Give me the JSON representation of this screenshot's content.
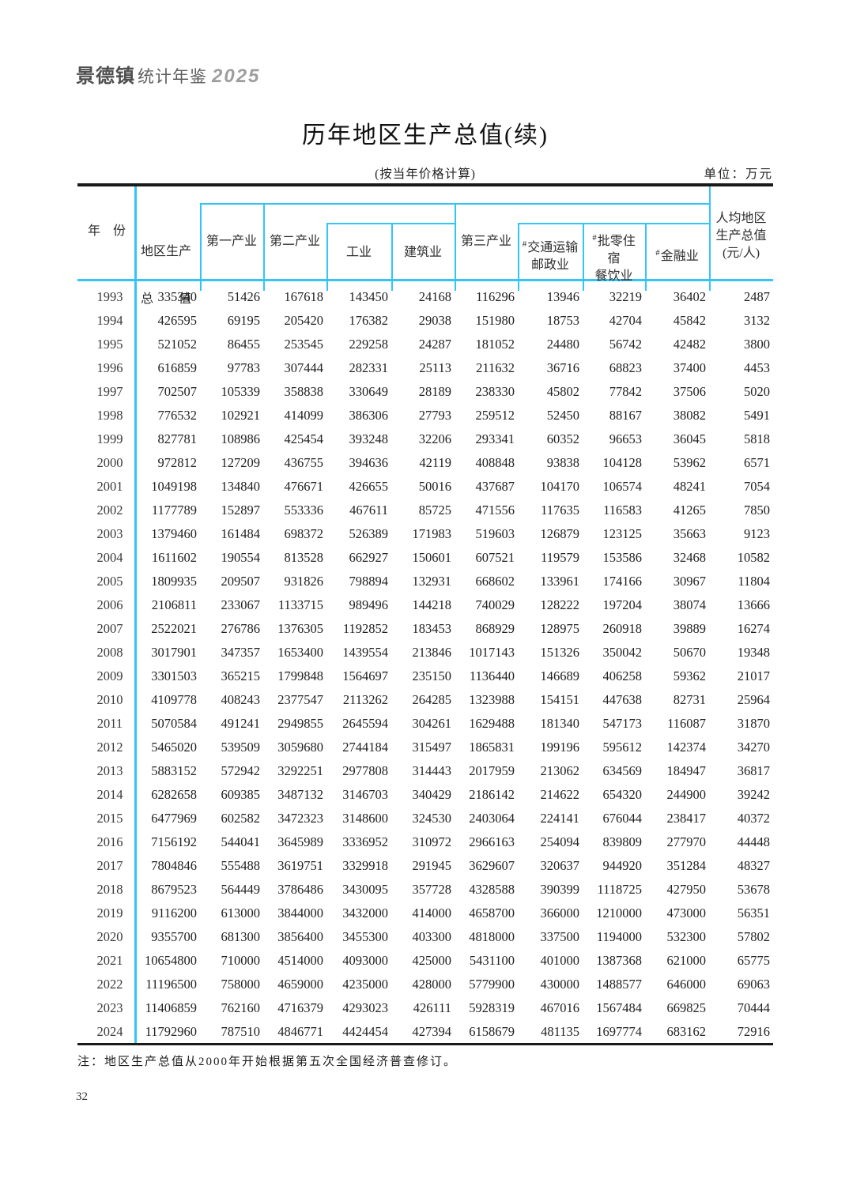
{
  "brand": {
    "city": "景德镇",
    "suffix": "统计年鉴",
    "year": "2025"
  },
  "title": "历年地区生产总值(续)",
  "subtitle": "(按当年价格计算)",
  "unit": "单位：万元",
  "note": "注：地区生产总值从2000年开始根据第五次全国经济普查修订。",
  "page_number": "32",
  "colors": {
    "accent": "#33c5f7",
    "rule": "#1a1a1a"
  },
  "table": {
    "header": {
      "year": "年　份",
      "gdp_line1": "地区生产",
      "gdp_line2": "总　　值",
      "primary": "第一产业",
      "secondary": "第二产业",
      "industry": "工业",
      "construction": "建筑业",
      "tertiary": "第三产业",
      "hash": "#",
      "transport_line1": "交通运输",
      "transport_line2": "邮政业",
      "wholesale_line1": "批零住",
      "wholesale_line2": "宿",
      "wholesale_line3": "餐饮业",
      "finance": "金融业",
      "percapita_line1": "人均地区",
      "percapita_line2": "生产总值",
      "percapita_line3": "(元/人)"
    },
    "columns": [
      "年份",
      "地区生产总值",
      "第一产业",
      "第二产业",
      "工业",
      "建筑业",
      "第三产业",
      "#交通运输邮政业",
      "#批零住宿餐饮业",
      "#金融业",
      "人均地区生产总值(元/人)"
    ],
    "rows": [
      [
        "1993",
        "335340",
        "51426",
        "167618",
        "143450",
        "24168",
        "116296",
        "13946",
        "32219",
        "36402",
        "2487"
      ],
      [
        "1994",
        "426595",
        "69195",
        "205420",
        "176382",
        "29038",
        "151980",
        "18753",
        "42704",
        "45842",
        "3132"
      ],
      [
        "1995",
        "521052",
        "86455",
        "253545",
        "229258",
        "24287",
        "181052",
        "24480",
        "56742",
        "42482",
        "3800"
      ],
      [
        "1996",
        "616859",
        "97783",
        "307444",
        "282331",
        "25113",
        "211632",
        "36716",
        "68823",
        "37400",
        "4453"
      ],
      [
        "1997",
        "702507",
        "105339",
        "358838",
        "330649",
        "28189",
        "238330",
        "45802",
        "77842",
        "37506",
        "5020"
      ],
      [
        "1998",
        "776532",
        "102921",
        "414099",
        "386306",
        "27793",
        "259512",
        "52450",
        "88167",
        "38082",
        "5491"
      ],
      [
        "1999",
        "827781",
        "108986",
        "425454",
        "393248",
        "32206",
        "293341",
        "60352",
        "96653",
        "36045",
        "5818"
      ],
      [
        "2000",
        "972812",
        "127209",
        "436755",
        "394636",
        "42119",
        "408848",
        "93838",
        "104128",
        "53962",
        "6571"
      ],
      [
        "2001",
        "1049198",
        "134840",
        "476671",
        "426655",
        "50016",
        "437687",
        "104170",
        "106574",
        "48241",
        "7054"
      ],
      [
        "2002",
        "1177789",
        "152897",
        "553336",
        "467611",
        "85725",
        "471556",
        "117635",
        "116583",
        "41265",
        "7850"
      ],
      [
        "2003",
        "1379460",
        "161484",
        "698372",
        "526389",
        "171983",
        "519603",
        "126879",
        "123125",
        "35663",
        "9123"
      ],
      [
        "2004",
        "1611602",
        "190554",
        "813528",
        "662927",
        "150601",
        "607521",
        "119579",
        "153586",
        "32468",
        "10582"
      ],
      [
        "2005",
        "1809935",
        "209507",
        "931826",
        "798894",
        "132931",
        "668602",
        "133961",
        "174166",
        "30967",
        "11804"
      ],
      [
        "2006",
        "2106811",
        "233067",
        "1133715",
        "989496",
        "144218",
        "740029",
        "128222",
        "197204",
        "38074",
        "13666"
      ],
      [
        "2007",
        "2522021",
        "276786",
        "1376305",
        "1192852",
        "183453",
        "868929",
        "128975",
        "260918",
        "39889",
        "16274"
      ],
      [
        "2008",
        "3017901",
        "347357",
        "1653400",
        "1439554",
        "213846",
        "1017143",
        "151326",
        "350042",
        "50670",
        "19348"
      ],
      [
        "2009",
        "3301503",
        "365215",
        "1799848",
        "1564697",
        "235150",
        "1136440",
        "146689",
        "406258",
        "59362",
        "21017"
      ],
      [
        "2010",
        "4109778",
        "408243",
        "2377547",
        "2113262",
        "264285",
        "1323988",
        "154151",
        "447638",
        "82731",
        "25964"
      ],
      [
        "2011",
        "5070584",
        "491241",
        "2949855",
        "2645594",
        "304261",
        "1629488",
        "181340",
        "547173",
        "116087",
        "31870"
      ],
      [
        "2012",
        "5465020",
        "539509",
        "3059680",
        "2744184",
        "315497",
        "1865831",
        "199196",
        "595612",
        "142374",
        "34270"
      ],
      [
        "2013",
        "5883152",
        "572942",
        "3292251",
        "2977808",
        "314443",
        "2017959",
        "213062",
        "634569",
        "184947",
        "36817"
      ],
      [
        "2014",
        "6282658",
        "609385",
        "3487132",
        "3146703",
        "340429",
        "2186142",
        "214622",
        "654320",
        "244900",
        "39242"
      ],
      [
        "2015",
        "6477969",
        "602582",
        "3472323",
        "3148600",
        "324530",
        "2403064",
        "224141",
        "676044",
        "238417",
        "40372"
      ],
      [
        "2016",
        "7156192",
        "544041",
        "3645989",
        "3336952",
        "310972",
        "2966163",
        "254094",
        "839809",
        "277970",
        "44448"
      ],
      [
        "2017",
        "7804846",
        "555488",
        "3619751",
        "3329918",
        "291945",
        "3629607",
        "320637",
        "944920",
        "351284",
        "48327"
      ],
      [
        "2018",
        "8679523",
        "564449",
        "3786486",
        "3430095",
        "357728",
        "4328588",
        "390399",
        "1118725",
        "427950",
        "53678"
      ],
      [
        "2019",
        "9116200",
        "613000",
        "3844000",
        "3432000",
        "414000",
        "4658700",
        "366000",
        "1210000",
        "473000",
        "56351"
      ],
      [
        "2020",
        "9355700",
        "681300",
        "3856400",
        "3455300",
        "403300",
        "4818000",
        "337500",
        "1194000",
        "532300",
        "57802"
      ],
      [
        "2021",
        "10654800",
        "710000",
        "4514000",
        "4093000",
        "425000",
        "5431100",
        "401000",
        "1387368",
        "621000",
        "65775"
      ],
      [
        "2022",
        "11196500",
        "758000",
        "4659000",
        "4235000",
        "428000",
        "5779900",
        "430000",
        "1488577",
        "646000",
        "69063"
      ],
      [
        "2023",
        "11406859",
        "762160",
        "4716379",
        "4293023",
        "426111",
        "5928319",
        "467016",
        "1567484",
        "669825",
        "70444"
      ],
      [
        "2024",
        "11792960",
        "787510",
        "4846771",
        "4424454",
        "427394",
        "6158679",
        "481135",
        "1697774",
        "683162",
        "72916"
      ]
    ]
  }
}
